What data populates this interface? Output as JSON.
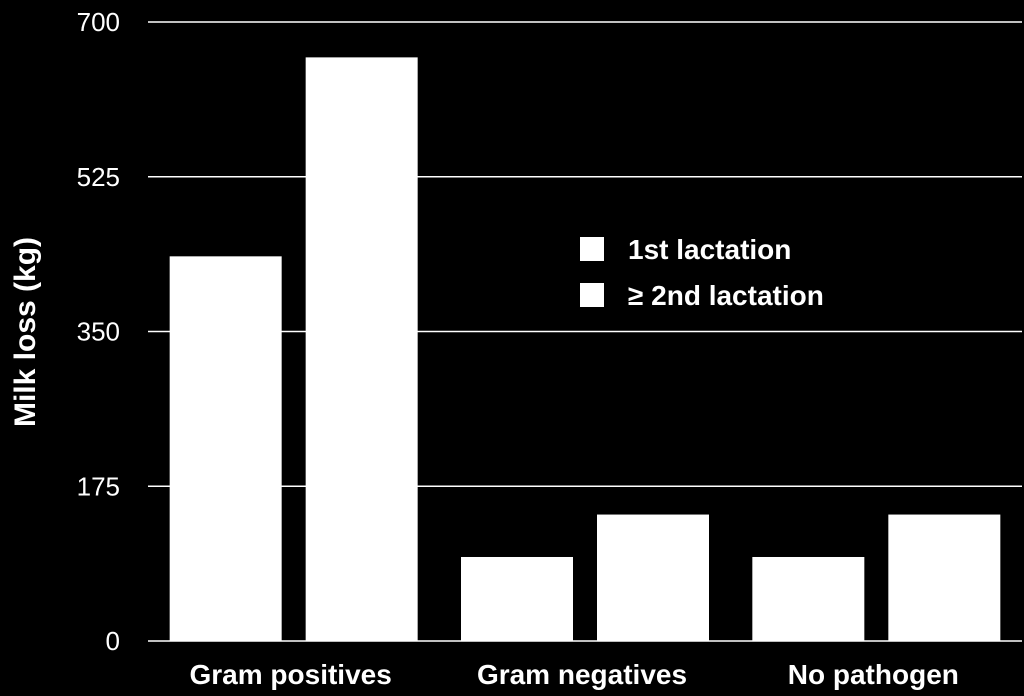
{
  "chart_data": {
    "type": "bar",
    "title": "",
    "xlabel": "",
    "ylabel": "Milk loss (kg)",
    "ylim": [
      0,
      700
    ],
    "yticks": [
      "0",
      "175",
      "350",
      "525",
      "700"
    ],
    "categories": [
      "Gram positives",
      "Gram negatives",
      "No pathogen"
    ],
    "series": [
      {
        "name": "1st lactation",
        "values": [
          435,
          95,
          95
        ],
        "color": "#ffffff"
      },
      {
        "name": "≥ 2nd lactation",
        "values": [
          660,
          143,
          143
        ],
        "color": "#ffffff"
      }
    ],
    "grid": true,
    "legend_position": "center-right",
    "colors": {
      "background": "#000000",
      "bars": "#ffffff",
      "gridlines": "#ffffff",
      "text": "#ffffff"
    }
  }
}
